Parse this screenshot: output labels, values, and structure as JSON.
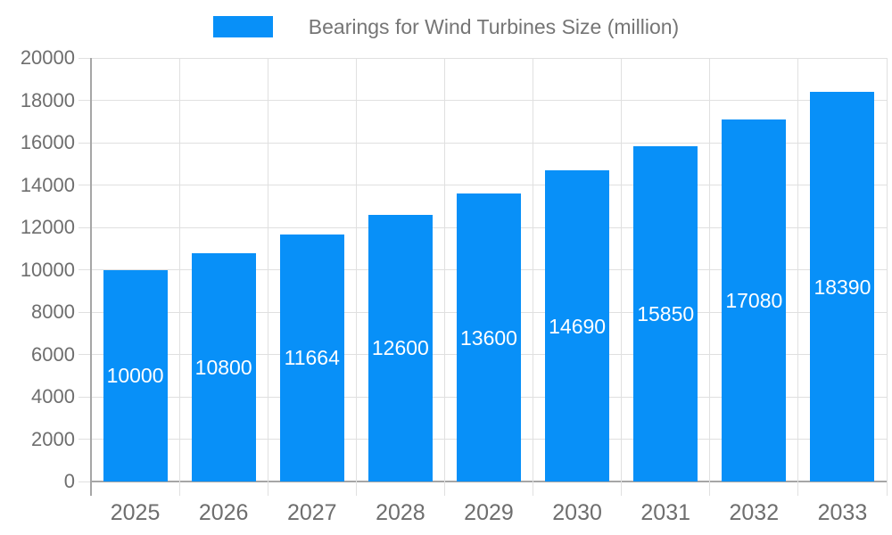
{
  "chart_data": {
    "type": "bar",
    "title": "Bearings for Wind Turbines Size (million)",
    "categories": [
      "2025",
      "2026",
      "2027",
      "2028",
      "2029",
      "2030",
      "2031",
      "2032",
      "2033"
    ],
    "values": [
      10000,
      10800,
      11664,
      12600,
      13600,
      14690,
      15850,
      17080,
      18390
    ],
    "bar_labels": [
      "10000",
      "10800",
      "11664",
      "12600",
      "13600",
      "14690",
      "15850",
      "17080",
      "18390"
    ],
    "xlabel": "",
    "ylabel": "",
    "ylim": [
      0,
      20000
    ],
    "ytick_step": 2000,
    "ytick_labels": [
      "0",
      "2000",
      "4000",
      "6000",
      "8000",
      "10000",
      "12000",
      "14000",
      "16000",
      "18000",
      "20000"
    ],
    "grid": true,
    "legend_position": "top-center",
    "bar_label_position": "center",
    "colors": {
      "bar": "#0890f8",
      "grid": "#e0e0e0",
      "axis": "#a6a6a6",
      "tick_text": "#6e6e6e",
      "bar_label_text": "#ffffff",
      "legend_text": "#757575",
      "background": "#ffffff"
    }
  }
}
